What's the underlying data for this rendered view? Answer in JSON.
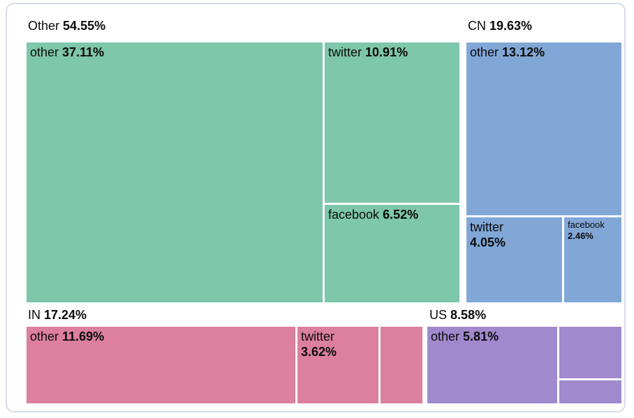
{
  "chart_data": {
    "type": "treemap",
    "title": "",
    "unit": "percent share",
    "legend_position": "none",
    "layout": "grouped treemap, group labels above each group, white 3px gutters",
    "groups": [
      {
        "label": "Other",
        "value": "54.55%",
        "color": "#7ec7ab",
        "children": [
          {
            "label": "other",
            "value": "37.11%"
          },
          {
            "label": "twitter",
            "value": "10.91%"
          },
          {
            "label": "facebook",
            "value": "6.52%"
          }
        ]
      },
      {
        "label": "CN",
        "value": "19.63%",
        "color": "#81a7d7",
        "children": [
          {
            "label": "other",
            "value": "13.12%"
          },
          {
            "label": "twitter",
            "value": "4.05%"
          },
          {
            "label": "facebook",
            "value": "2.46%"
          }
        ]
      },
      {
        "label": "IN",
        "value": "17.24%",
        "color": "#dd7f9e",
        "children": [
          {
            "label": "other",
            "value": "11.69%"
          },
          {
            "label": "twitter",
            "value": "3.62%"
          },
          {
            "label": "",
            "value": ""
          }
        ]
      },
      {
        "label": "US",
        "value": "8.58%",
        "color": "#a189ce",
        "children": [
          {
            "label": "other",
            "value": "5.81%"
          },
          {
            "label": "",
            "value": ""
          },
          {
            "label": "",
            "value": ""
          }
        ]
      }
    ]
  }
}
